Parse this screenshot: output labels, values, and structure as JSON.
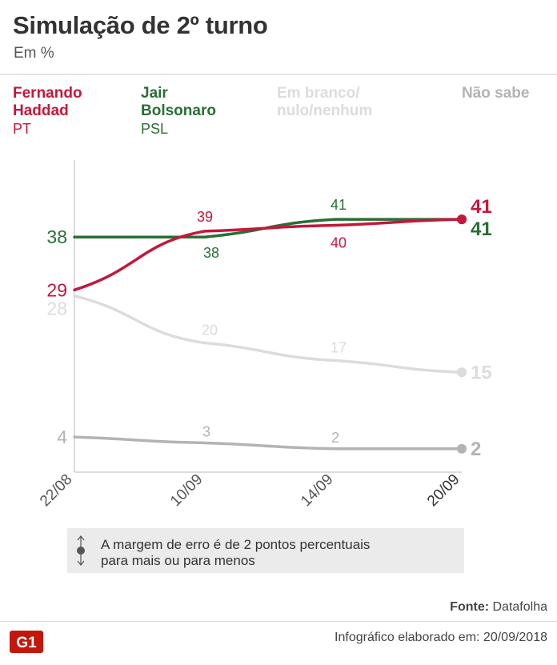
{
  "header": {
    "title": "Simulação de 2º turno",
    "subtitle": "Em %"
  },
  "legend": [
    {
      "name_line1": "Fernando",
      "name_line2": "Haddad",
      "party": "PT",
      "color": "#c4173b"
    },
    {
      "name_line1": "Jair",
      "name_line2": "Bolsonaro",
      "party": "PSL",
      "color": "#2a6e35"
    },
    {
      "name_line1": "Em branco/",
      "name_line2": "nulo/nenhum",
      "party": "",
      "color": "#dcdcdc"
    },
    {
      "name_line1": "Não sabe",
      "name_line2": "",
      "party": "",
      "color": "#b3b3b3"
    }
  ],
  "chart_data": {
    "type": "line",
    "categories": [
      "22/08",
      "10/09",
      "14/09",
      "20/09"
    ],
    "series": [
      {
        "name": "Fernando Haddad",
        "values": [
          29,
          39,
          40,
          41
        ],
        "color": "#c4173b"
      },
      {
        "name": "Jair Bolsonaro",
        "values": [
          38,
          38,
          41,
          41
        ],
        "color": "#2a6e35"
      },
      {
        "name": "Em branco/nulo/nenhum",
        "values": [
          28,
          20,
          17,
          15
        ],
        "color": "#dcdcdc"
      },
      {
        "name": "Não sabe",
        "values": [
          4,
          3,
          2,
          2
        ],
        "color": "#b3b3b3"
      }
    ],
    "ylim": [
      0,
      48
    ],
    "grid": false
  },
  "note": {
    "line1": "A margem de erro é de 2 pontos percentuais",
    "line2": "para mais ou para menos"
  },
  "footer": {
    "source_label": "Fonte:",
    "source_value": "Datafolha",
    "logo_text": "G1",
    "credit": "Infográfico elaborado em: 20/09/2018"
  }
}
